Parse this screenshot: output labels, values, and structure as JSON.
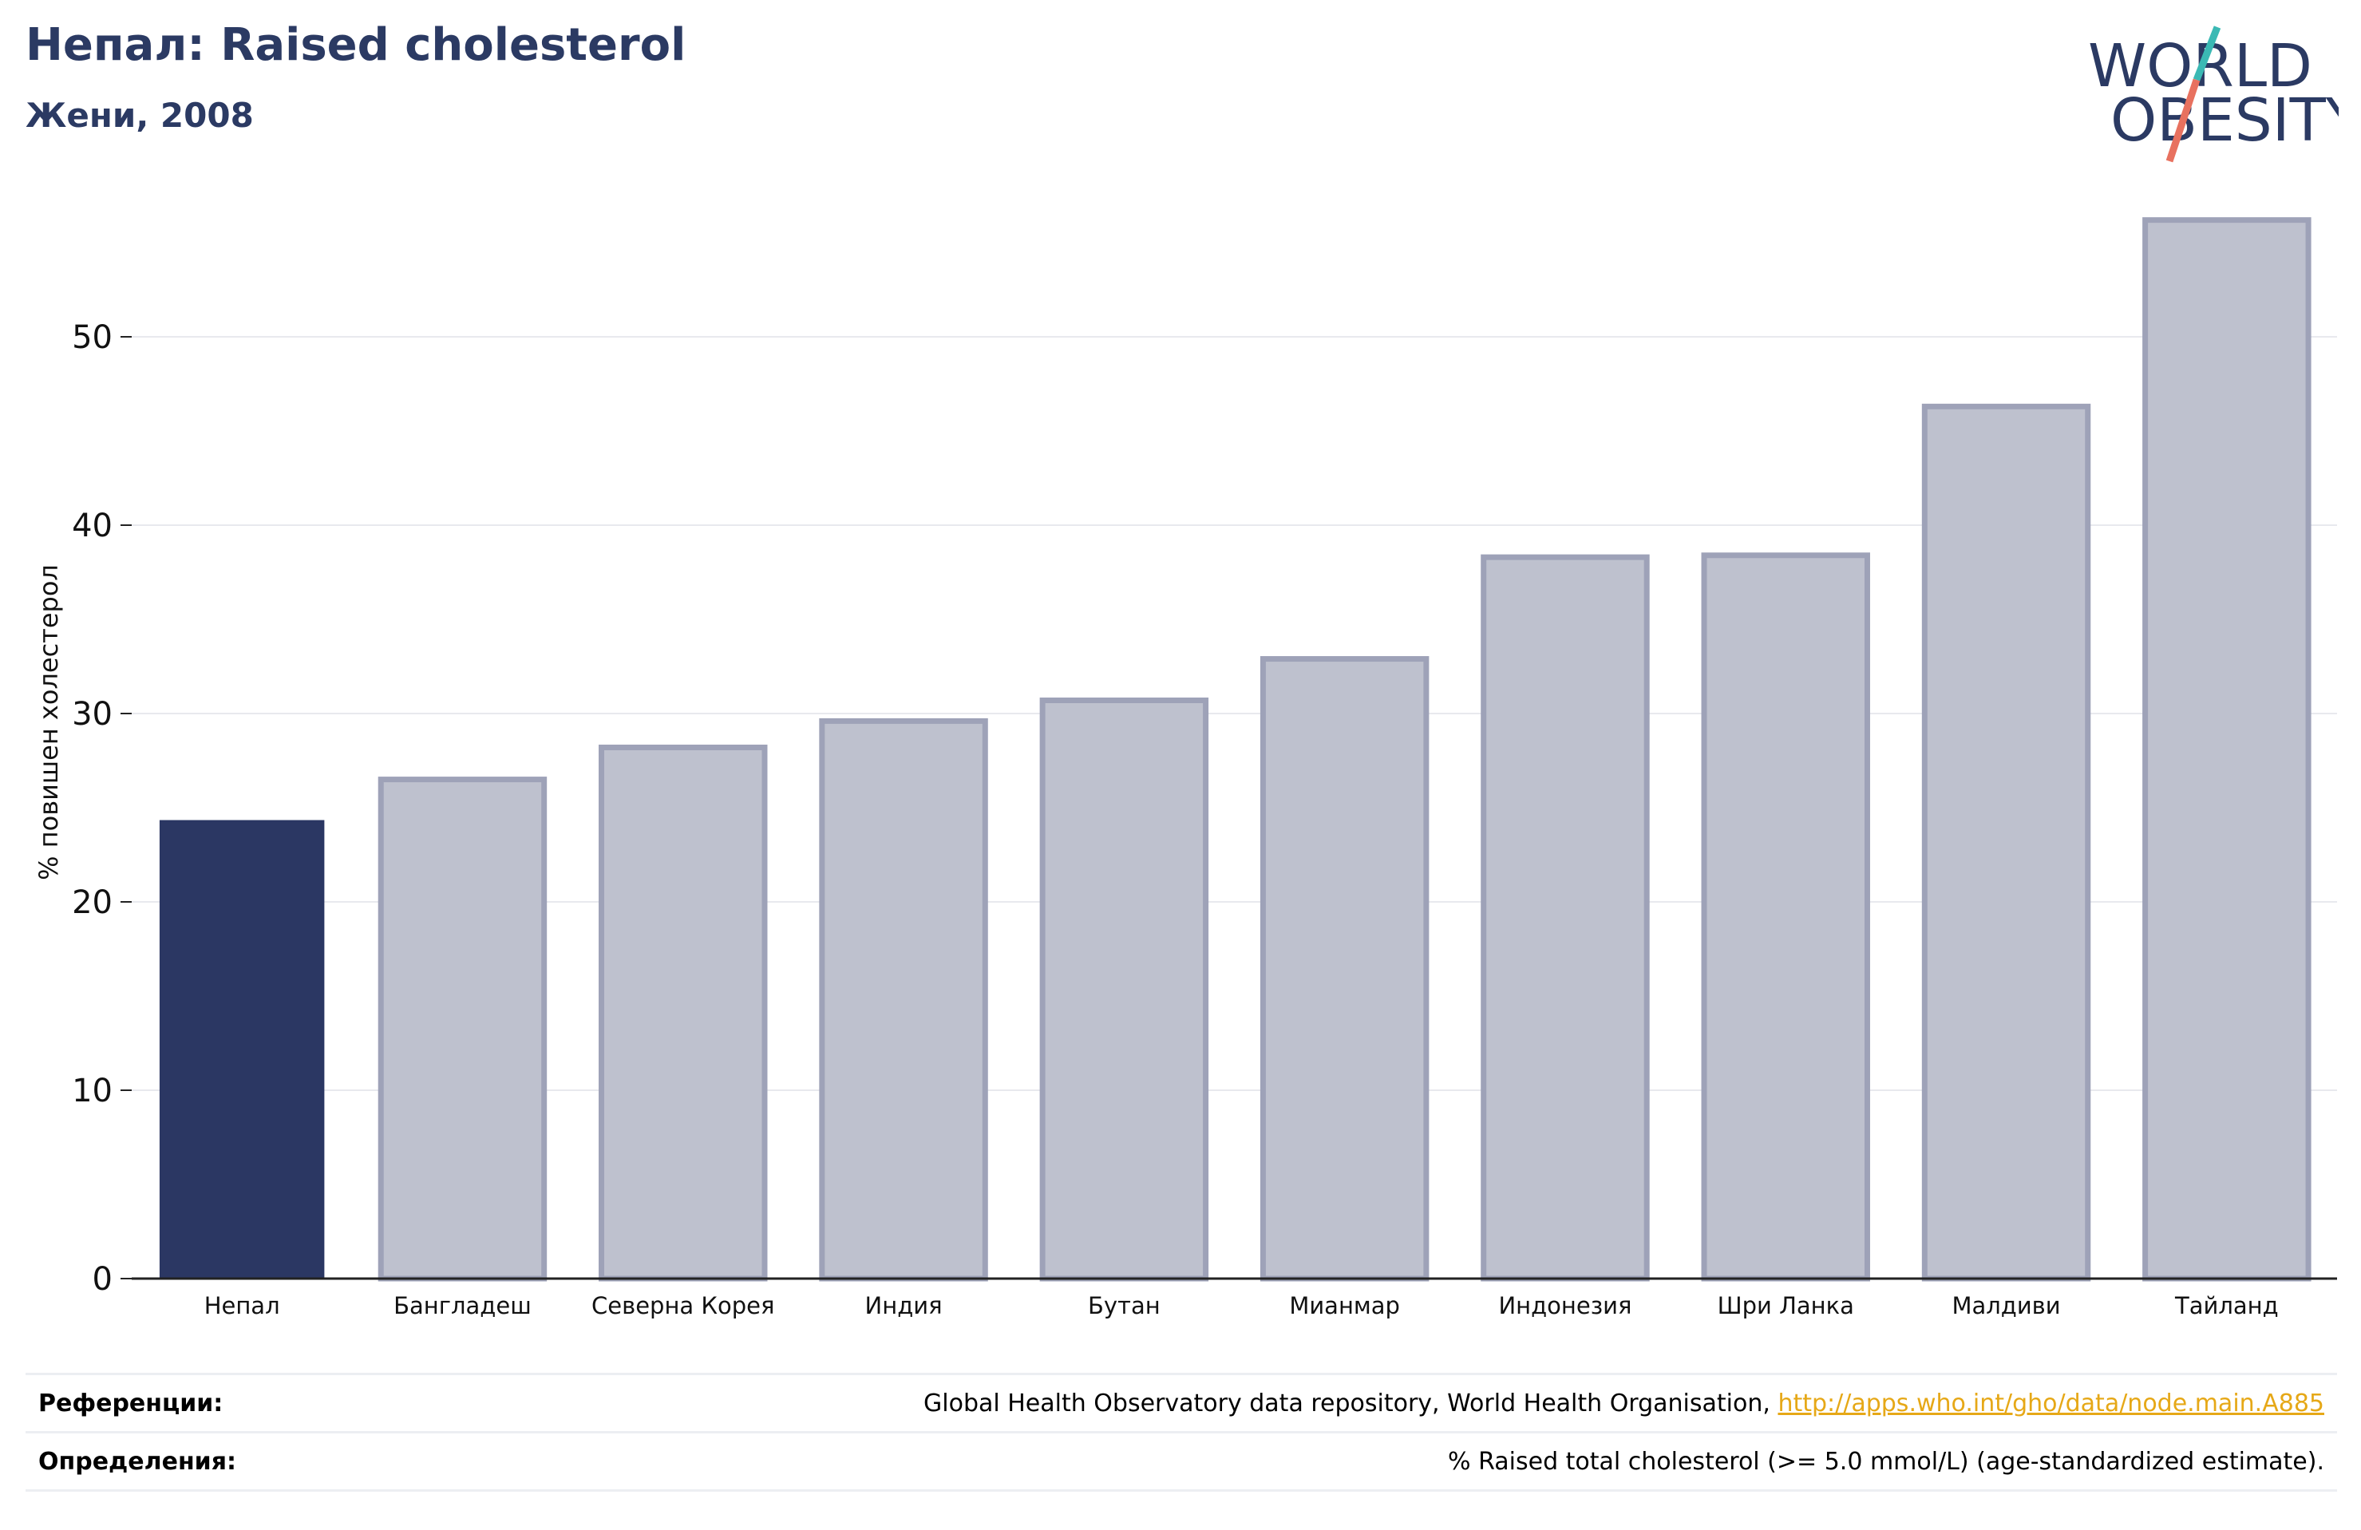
{
  "header": {
    "title": "Непал: Raised cholesterol",
    "subtitle": "Жени, 2008"
  },
  "logo": {
    "line1": "WORLD",
    "line2": "OBESITY",
    "text_color": "#2b3a63",
    "slash_top_color": "#3bb9b4",
    "slash_bottom_color": "#e8715f"
  },
  "chart_data": {
    "type": "bar",
    "title": "",
    "xlabel": "",
    "ylabel": "% повишен холестерол",
    "categories": [
      "Непал",
      "Бангладеш",
      "Северна Корея",
      "Индия",
      "Бутан",
      "Мианмар",
      "Индонезия",
      "Шри Ланка",
      "Малдиви",
      "Тайланд"
    ],
    "values": [
      24.3,
      26.5,
      28.2,
      29.6,
      30.7,
      32.9,
      38.3,
      38.4,
      46.3,
      56.2
    ],
    "highlight_index": 0,
    "highlight_color": "#2b3763",
    "bar_color": "#bec1ce",
    "bar_edge_color": "#9ea2b8",
    "ylim": [
      0,
      57
    ],
    "yticks": [
      0,
      10,
      20,
      30,
      40,
      50
    ],
    "grid": true
  },
  "references": {
    "sources_label": "Референции:",
    "sources_text": "Global Health Observatory data repository, World Health Organisation, ",
    "sources_link": "http://apps.who.int/gho/data/node.main.A885",
    "definitions_label": "Определения:",
    "definitions_text": "% Raised total cholesterol (>= 5.0 mmol/L) (age-standardized estimate)."
  }
}
